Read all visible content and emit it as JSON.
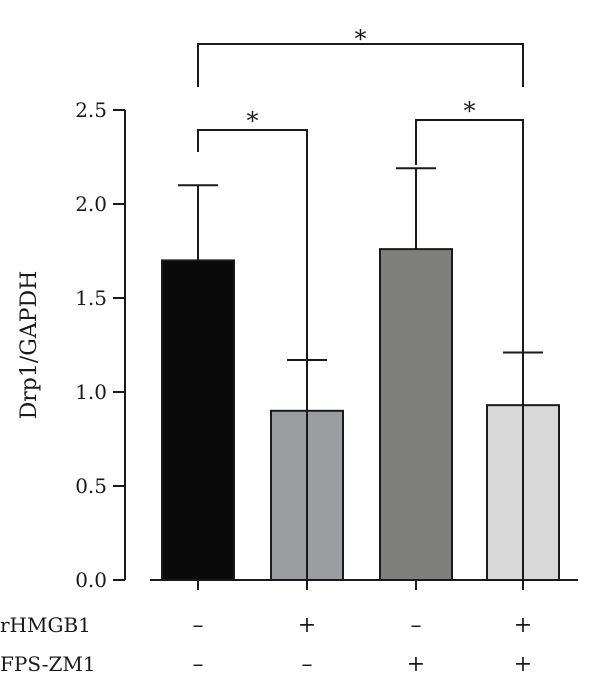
{
  "chart_data": {
    "type": "bar",
    "title": "",
    "xlabel": "",
    "ylabel": "Drp1/GAPDH",
    "ylim": [
      0,
      2.5
    ],
    "yticks": [
      "0.0",
      "0.5",
      "1.0",
      "1.5",
      "2.0",
      "2.5"
    ],
    "grid": false,
    "bars": [
      {
        "value": 1.7,
        "error": 0.4,
        "color": "#0a0a0a"
      },
      {
        "value": 0.9,
        "error": 0.27,
        "color": "#9c9da1"
      },
      {
        "value": 1.76,
        "error": 0.43,
        "color": "#7f807e"
      },
      {
        "value": 0.93,
        "error": 0.28,
        "color": "#d9d9d9"
      }
    ],
    "treatments": [
      {
        "name": "rHMGB1",
        "signs": [
          "–",
          "+",
          "–",
          "+"
        ]
      },
      {
        "name": "FPS-ZM1",
        "signs": [
          "–",
          "–",
          "+",
          "+"
        ]
      }
    ],
    "significance": [
      {
        "from": 0,
        "to": 1,
        "label": "*"
      },
      {
        "from": 2,
        "to": 3,
        "label": "*"
      },
      {
        "from": 0,
        "to": 3,
        "label": "*"
      }
    ]
  }
}
